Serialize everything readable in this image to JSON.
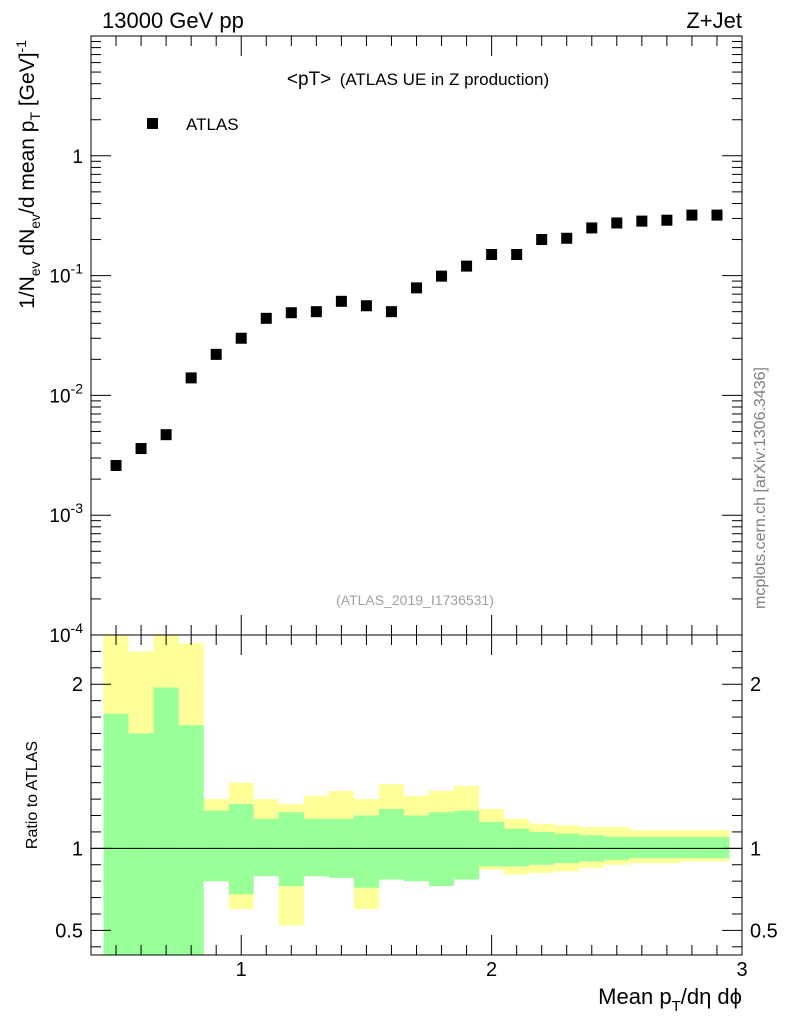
{
  "header": {
    "left": "13000 GeV pp",
    "right": "Z+Jet"
  },
  "side_label": "mcplots.cern.ch [arXiv:1306.3436]",
  "chart_data": [
    {
      "type": "scatter",
      "panel": "main",
      "title": "<pT> (ATLAS UE in Z production)",
      "title_main": "<pT>",
      "title_sub": "(ATLAS UE in Z production)",
      "watermark": "(ATLAS_2019_I1736531)",
      "ylabel": "1/N_ev dN_ev/d mean p_T [GeV]^-1",
      "ylabel_parts": {
        "a": "1/N",
        "a_sub": "ev",
        "b": " dN",
        "b_sub": "ev",
        "c": "/d mean p",
        "c_sub": "T",
        "d": " [GeV]",
        "d_sup": "-1"
      },
      "yscale": "log",
      "ylim": [
        0.0001,
        10
      ],
      "y_ticks": [
        {
          "value": 0.0001,
          "base": "10",
          "exp": "-4"
        },
        {
          "value": 0.001,
          "base": "10",
          "exp": "-3"
        },
        {
          "value": 0.01,
          "base": "10",
          "exp": "-2"
        },
        {
          "value": 0.1,
          "base": "10",
          "exp": "-1"
        },
        {
          "value": 1,
          "base": "1",
          "exp": ""
        }
      ],
      "xlim": [
        0.4,
        3.0
      ],
      "legend": {
        "label": "ATLAS",
        "placement": "top-left"
      },
      "series": [
        {
          "name": "ATLAS",
          "x": [
            0.5,
            0.6,
            0.7,
            0.8,
            0.9,
            1.0,
            1.1,
            1.2,
            1.3,
            1.4,
            1.5,
            1.6,
            1.7,
            1.8,
            1.9,
            2.0,
            2.1,
            2.2,
            2.3,
            2.4,
            2.5,
            2.6,
            2.7,
            2.8,
            2.9
          ],
          "y": [
            0.0026,
            0.0036,
            0.0047,
            0.014,
            0.022,
            0.03,
            0.044,
            0.049,
            0.05,
            0.061,
            0.056,
            0.05,
            0.079,
            0.099,
            0.12,
            0.15,
            0.15,
            0.2,
            0.205,
            0.25,
            0.275,
            0.285,
            0.29,
            0.32,
            0.32
          ]
        }
      ]
    },
    {
      "type": "area",
      "panel": "ratio",
      "ylabel": "Ratio to ATLAS",
      "xlabel": "Mean p_T/dη dϕ",
      "xlabel_parts": {
        "a": "Mean p",
        "a_sub": "T",
        "b": "/dη dϕ"
      },
      "xlim": [
        0.4,
        3.0
      ],
      "ylim": [
        0.35,
        2.3
      ],
      "x_ticks": [
        {
          "value": 1,
          "label": "1"
        },
        {
          "value": 2,
          "label": "2"
        },
        {
          "value": 3,
          "label": "3"
        }
      ],
      "y_ticks": [
        {
          "value": 0.5,
          "label": "0.5"
        },
        {
          "value": 1,
          "label": "1"
        },
        {
          "value": 2,
          "label": "2"
        }
      ],
      "reference_line": 1,
      "bins": {
        "edges": [
          0.45,
          0.55,
          0.65,
          0.75,
          0.85,
          0.95,
          1.05,
          1.15,
          1.25,
          1.35,
          1.45,
          1.55,
          1.65,
          1.75,
          1.85,
          1.95,
          2.05,
          2.15,
          2.25,
          2.35,
          2.45,
          2.55,
          2.65,
          2.75,
          2.85,
          2.95
        ],
        "yellow_lo": [
          0.35,
          0.35,
          0.35,
          0.35,
          0.8,
          0.63,
          0.83,
          0.53,
          0.83,
          0.82,
          0.63,
          0.81,
          0.8,
          0.77,
          0.81,
          0.87,
          0.84,
          0.85,
          0.86,
          0.88,
          0.9,
          0.91,
          0.91,
          0.92,
          0.92
        ],
        "yellow_hi": [
          2.35,
          2.2,
          2.35,
          2.25,
          1.3,
          1.4,
          1.3,
          1.27,
          1.32,
          1.35,
          1.3,
          1.39,
          1.32,
          1.35,
          1.38,
          1.24,
          1.18,
          1.15,
          1.14,
          1.13,
          1.13,
          1.11,
          1.11,
          1.11,
          1.11
        ],
        "green_lo": [
          0.35,
          0.35,
          0.35,
          0.35,
          0.8,
          0.72,
          0.83,
          0.77,
          0.83,
          0.82,
          0.76,
          0.81,
          0.8,
          0.77,
          0.81,
          0.89,
          0.89,
          0.9,
          0.91,
          0.92,
          0.93,
          0.94,
          0.94,
          0.94,
          0.94
        ],
        "green_hi": [
          1.82,
          1.7,
          1.98,
          1.75,
          1.23,
          1.27,
          1.18,
          1.22,
          1.18,
          1.18,
          1.2,
          1.24,
          1.2,
          1.22,
          1.23,
          1.16,
          1.12,
          1.1,
          1.09,
          1.08,
          1.07,
          1.07,
          1.07,
          1.07,
          1.07
        ]
      }
    }
  ],
  "colors": {
    "marker": "#000000",
    "band_outer": "#ffff99",
    "band_inner": "#99ff99",
    "axis": "#000000",
    "watermark": "#a0a0a0",
    "side_label": "#808080"
  }
}
